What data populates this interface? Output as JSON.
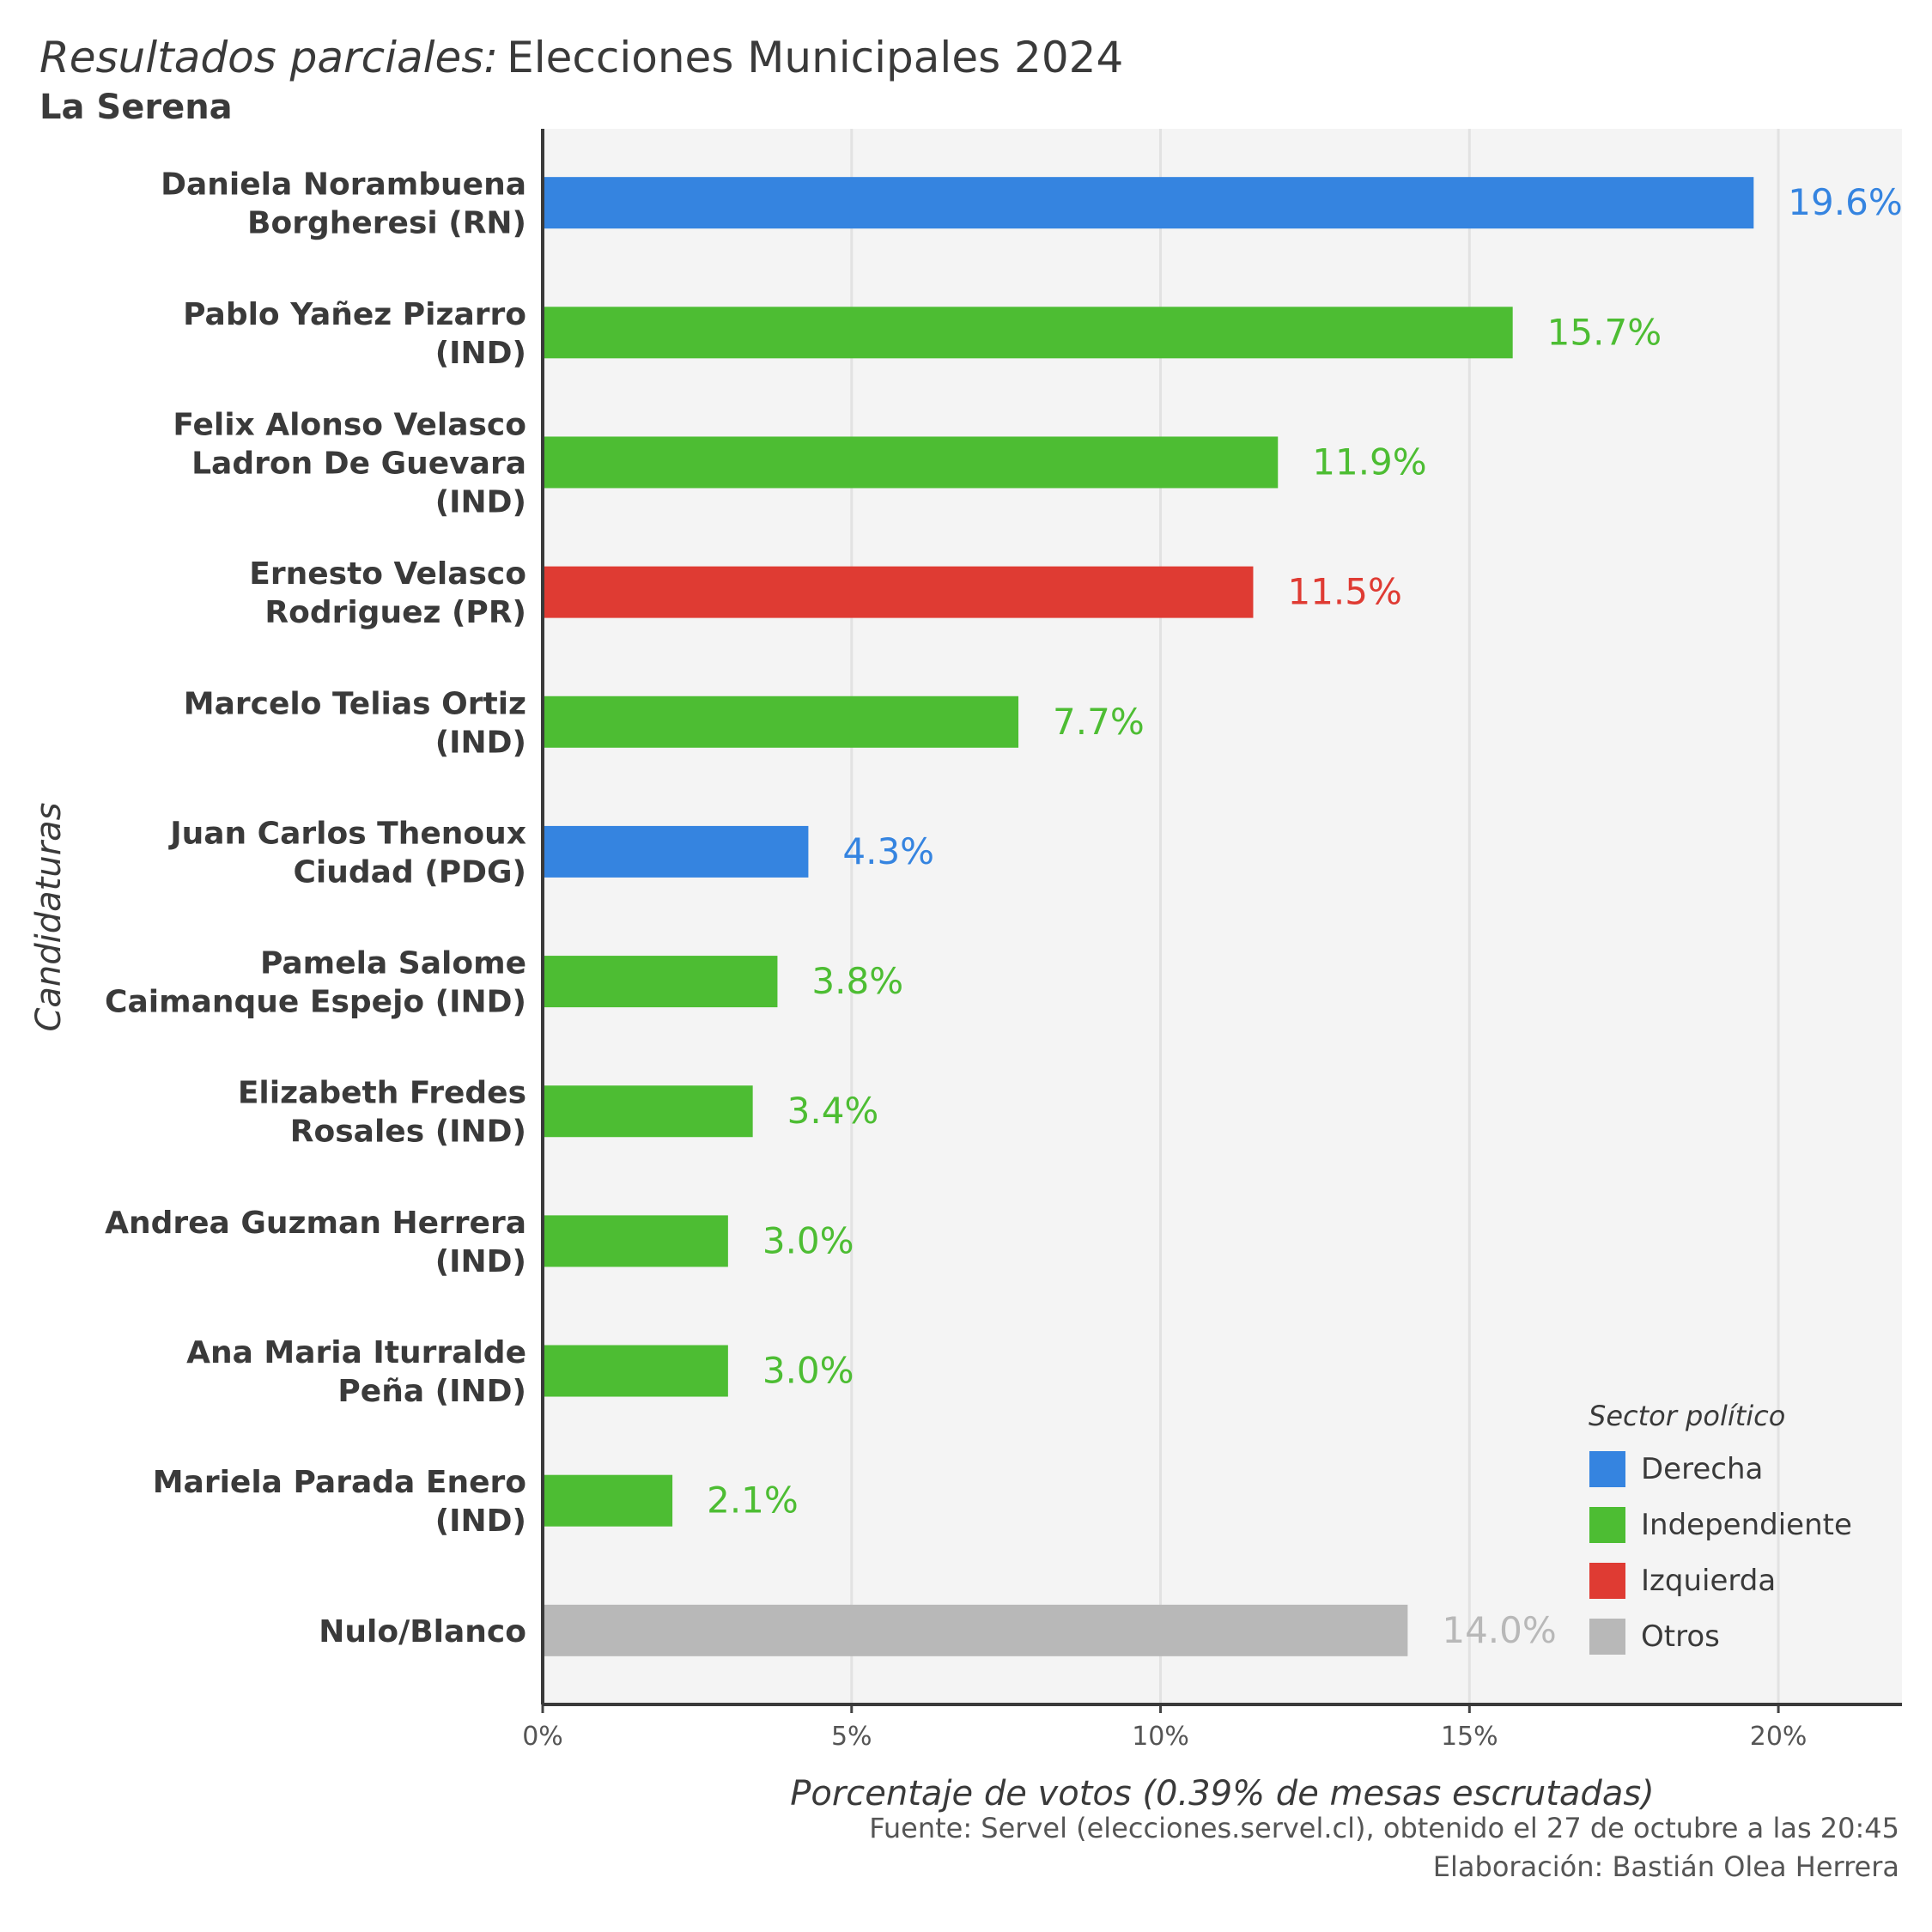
{
  "header": {
    "title_italic": "Resultados parciales:",
    "title_rest": "Elecciones Municipales 2024",
    "subtitle": "La Serena"
  },
  "caption": {
    "source": "Fuente: Servel (elecciones.servel.cl), obtenido el 27 de octubre a las 20:45",
    "author": "Elaboración: Bastián Olea Herrera"
  },
  "chart_data": {
    "type": "bar",
    "orientation": "horizontal",
    "xlabel": "Porcentaje de votos (0.39% de mesas escrutadas)",
    "ylabel": "Candidaturas",
    "xlim": [
      0,
      22
    ],
    "x_ticks": [
      0,
      5,
      10,
      15,
      20
    ],
    "x_tick_labels": [
      "0%",
      "5%",
      "10%",
      "15%",
      "20%"
    ],
    "grid": true,
    "legend": {
      "title": "Sector político",
      "position": "bottom-right",
      "entries": [
        {
          "name": "Derecha",
          "color": "#3584e0"
        },
        {
          "name": "Independiente",
          "color": "#4dbd33"
        },
        {
          "name": "Izquierda",
          "color": "#df3b33"
        },
        {
          "name": "Otros",
          "color": "#b8b8b8"
        }
      ]
    },
    "bars": [
      {
        "label": [
          "Daniela Norambuena",
          "Borgheresi (RN)"
        ],
        "value": 19.6,
        "value_label": "19.6%",
        "sector": "Derecha"
      },
      {
        "label": [
          "Pablo Yañez Pizarro",
          "(IND)"
        ],
        "value": 15.7,
        "value_label": "15.7%",
        "sector": "Independiente"
      },
      {
        "label": [
          "Felix Alonso Velasco",
          "Ladron De Guevara",
          "(IND)"
        ],
        "value": 11.9,
        "value_label": "11.9%",
        "sector": "Independiente"
      },
      {
        "label": [
          "Ernesto Velasco",
          "Rodriguez (PR)"
        ],
        "value": 11.5,
        "value_label": "11.5%",
        "sector": "Izquierda"
      },
      {
        "label": [
          "Marcelo Telias Ortiz",
          "(IND)"
        ],
        "value": 7.7,
        "value_label": "7.7%",
        "sector": "Independiente"
      },
      {
        "label": [
          "Juan Carlos Thenoux",
          "Ciudad (PDG)"
        ],
        "value": 4.3,
        "value_label": "4.3%",
        "sector": "Derecha"
      },
      {
        "label": [
          "Pamela Salome",
          "Caimanque Espejo (IND)"
        ],
        "value": 3.8,
        "value_label": "3.8%",
        "sector": "Independiente"
      },
      {
        "label": [
          "Elizabeth Fredes",
          "Rosales (IND)"
        ],
        "value": 3.4,
        "value_label": "3.4%",
        "sector": "Independiente"
      },
      {
        "label": [
          "Andrea Guzman Herrera",
          "(IND)"
        ],
        "value": 3.0,
        "value_label": "3.0%",
        "sector": "Independiente"
      },
      {
        "label": [
          "Ana Maria Iturralde",
          "Peña (IND)"
        ],
        "value": 3.0,
        "value_label": "3.0%",
        "sector": "Independiente"
      },
      {
        "label": [
          "Mariela Parada Enero",
          "(IND)"
        ],
        "value": 2.1,
        "value_label": "2.1%",
        "sector": "Independiente"
      },
      {
        "label": [
          "Nulo/Blanco"
        ],
        "value": 14.0,
        "value_label": "14.0%",
        "sector": "Otros"
      }
    ]
  }
}
